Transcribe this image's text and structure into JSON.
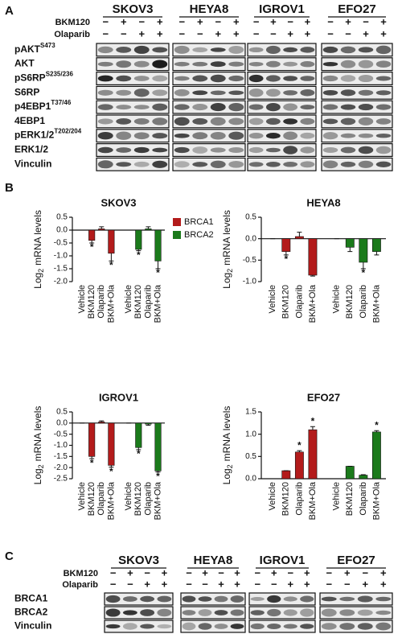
{
  "panel_labels": [
    "A",
    "B",
    "C"
  ],
  "blots_a": {
    "cell_lines": [
      "SKOV3",
      "HEYA8",
      "IGROV1",
      "EFO27"
    ],
    "treatments": [
      {
        "name": "BKM120",
        "signs": [
          "−",
          "+",
          "−",
          "+"
        ]
      },
      {
        "name": "Olaparib",
        "signs": [
          "−",
          "−",
          "+",
          "+"
        ]
      }
    ],
    "rows": [
      {
        "label": "pAKT",
        "sup": "S473"
      },
      {
        "label": "AKT"
      },
      {
        "label": "pS6RP",
        "sup": "S235/236"
      },
      {
        "label": "S6RP"
      },
      {
        "label": "p4EBP1",
        "sup": "T37/46"
      },
      {
        "label": "4EBP1"
      },
      {
        "label": "pERK1/2",
        "sup": "T202/204"
      },
      {
        "label": "ERK1/2"
      },
      {
        "label": "Vinculin"
      }
    ]
  },
  "chart_data": [
    {
      "type": "bar",
      "title": "SKOV3",
      "ylabel": [
        "Log",
        "2",
        "mRNA levels"
      ],
      "annotation": "*",
      "legend": true,
      "categories": [
        "Vehicle",
        "BKM120",
        "Olaparib",
        "BKM+Ola"
      ],
      "ylim": [
        -2.0,
        0.5
      ],
      "yticks": [
        0.5,
        {
          "value": 0,
          "label": "0.0"
        },
        -0.5,
        {
          "value": -1,
          "label": "-1.0"
        },
        -1.5,
        {
          "value": -2,
          "label": "-2.0"
        }
      ],
      "series": [
        {
          "name": "BRCA1",
          "color": "#b31b1b",
          "values": [
            0,
            -0.4,
            0.05,
            -0.9
          ],
          "errors": [
            0,
            0.1,
            0.08,
            0.3
          ],
          "starred": [
            false,
            true,
            false,
            true
          ]
        },
        {
          "name": "BRCA2",
          "color": "#1b7a1b",
          "values": [
            0,
            -0.75,
            0.05,
            -1.2
          ],
          "errors": [
            0,
            0.05,
            0.08,
            0.3
          ],
          "starred": [
            false,
            true,
            false,
            true
          ]
        }
      ]
    },
    {
      "type": "bar",
      "title": "HEYA8",
      "ylabel": [
        "Log",
        "2",
        "mRNA levels"
      ],
      "annotation": "*",
      "legend": false,
      "categories": [
        "Vehicle",
        "BKM120",
        "Olaparib",
        "BKM+Ola"
      ],
      "ylim": [
        -1.0,
        0.5
      ],
      "yticks": [
        0.5,
        {
          "value": 0,
          "label": "0.0"
        },
        -0.5,
        {
          "value": -1,
          "label": "-1.0"
        }
      ],
      "series": [
        {
          "name": "BRCA1",
          "color": "#b31b1b",
          "values": [
            0,
            -0.3,
            0.05,
            -0.85
          ],
          "errors": [
            0,
            0.08,
            0.1,
            0.02
          ],
          "starred": [
            false,
            true,
            false,
            false
          ]
        },
        {
          "name": "BRCA2",
          "color": "#1b7a1b",
          "values": [
            0,
            -0.2,
            -0.55,
            -0.3
          ],
          "errors": [
            0,
            0.1,
            0.15,
            0.08
          ],
          "starred": [
            false,
            false,
            true,
            false
          ]
        }
      ]
    },
    {
      "type": "bar",
      "title": "IGROV1",
      "ylabel": [
        "Log",
        "2",
        "mRNA levels"
      ],
      "annotation": "*",
      "legend": false,
      "categories": [
        "Vehicle",
        "BKM120",
        "Olaparib",
        "BKM+Ola"
      ],
      "ylim": [
        -2.5,
        0.5
      ],
      "yticks": [
        0.5,
        {
          "value": 0,
          "label": "0.0"
        },
        -0.5,
        {
          "value": -1,
          "label": "-1.0"
        },
        -1.5,
        {
          "value": -2,
          "label": "-2.0"
        },
        -2.5
      ],
      "series": [
        {
          "name": "BRCA1",
          "color": "#b31b1b",
          "values": [
            0,
            -1.5,
            0.05,
            -1.9
          ],
          "errors": [
            0,
            0.1,
            0.05,
            0.08
          ],
          "starred": [
            false,
            true,
            false,
            true
          ]
        },
        {
          "name": "BRCA2",
          "color": "#1b7a1b",
          "values": [
            0,
            -1.1,
            -0.05,
            -2.15
          ],
          "errors": [
            0,
            0.1,
            0.05,
            0.05
          ],
          "starred": [
            false,
            true,
            false,
            true
          ]
        }
      ]
    },
    {
      "type": "bar",
      "title": "EFO27",
      "ylabel": [
        "Log",
        "2",
        "mRNA levels"
      ],
      "annotation": "*",
      "legend": false,
      "categories": [
        "Vehicle",
        "BKM120",
        "Olaparib",
        "BKM+Ola"
      ],
      "ylim": [
        0,
        1.5
      ],
      "yticks": [
        {
          "value": 0,
          "label": "0.0"
        },
        0.5,
        {
          "value": 1,
          "label": "1.0"
        },
        1.5
      ],
      "series": [
        {
          "name": "BRCA1",
          "color": "#b31b1b",
          "values": [
            0,
            0.18,
            0.6,
            1.1
          ],
          "errors": [
            0,
            0,
            0.03,
            0.07
          ],
          "starred": [
            false,
            false,
            true,
            true
          ]
        },
        {
          "name": "BRCA2",
          "color": "#1b7a1b",
          "values": [
            0,
            0.28,
            0.08,
            1.05
          ],
          "errors": [
            0,
            0,
            0.01,
            0.03
          ],
          "starred": [
            false,
            false,
            false,
            true
          ]
        }
      ]
    }
  ],
  "blots_c": {
    "cell_lines": [
      "SKOV3",
      "HEYA8",
      "IGROV1",
      "EFO27"
    ],
    "treatments": [
      {
        "name": "BKM120",
        "signs": [
          "−",
          "+",
          "−",
          "+"
        ]
      },
      {
        "name": "Olaparib",
        "signs": [
          "−",
          "−",
          "+",
          "+"
        ]
      }
    ],
    "rows": [
      {
        "label": "BRCA1"
      },
      {
        "label": "BRCA2"
      },
      {
        "label": "Vinculin"
      }
    ]
  }
}
